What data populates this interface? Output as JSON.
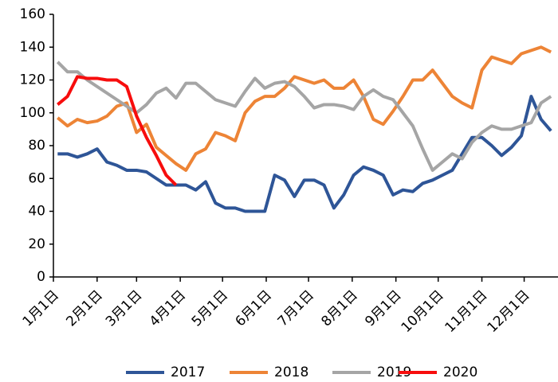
{
  "chart_data": {
    "type": "line",
    "x": [
      3,
      10,
      17,
      24,
      31,
      38,
      45,
      52,
      59,
      66,
      73,
      80,
      87,
      94,
      101,
      108,
      115,
      122,
      129,
      136,
      143,
      150,
      157,
      164,
      171,
      178,
      185,
      192,
      199,
      206,
      213,
      220,
      227,
      234,
      241,
      248,
      255,
      262,
      269,
      276,
      283,
      290,
      297,
      304,
      311,
      318,
      325,
      332,
      339,
      346,
      353
    ],
    "xlim": [
      0,
      358
    ],
    "xticks": [
      {
        "value": 0,
        "label": "1月1日"
      },
      {
        "value": 31,
        "label": "2月1日"
      },
      {
        "value": 59,
        "label": "3月1日"
      },
      {
        "value": 90,
        "label": "4月1日"
      },
      {
        "value": 120,
        "label": "5月1日"
      },
      {
        "value": 151,
        "label": "6月1日"
      },
      {
        "value": 181,
        "label": "7月1日"
      },
      {
        "value": 212,
        "label": "8月1日"
      },
      {
        "value": 243,
        "label": "9月1日"
      },
      {
        "value": 273,
        "label": "10月1日"
      },
      {
        "value": 304,
        "label": "11月1日"
      },
      {
        "value": 334,
        "label": "12月1日"
      }
    ],
    "ylim": [
      0,
      160
    ],
    "yticks": [
      0,
      20,
      40,
      60,
      80,
      100,
      120,
      140,
      160
    ],
    "grid": false,
    "legend": "bottom",
    "series": [
      {
        "name": "2017",
        "color": "#2e5597",
        "values": [
          75,
          75,
          73,
          75,
          78,
          70,
          68,
          65,
          65,
          64,
          60,
          56,
          56,
          56,
          53,
          58,
          45,
          42,
          42,
          40,
          40,
          40,
          62,
          59,
          49,
          59,
          59,
          56,
          42,
          50,
          62,
          67,
          65,
          62,
          50,
          53,
          52,
          57,
          59,
          62,
          65,
          75,
          85,
          85,
          80,
          74,
          79,
          86,
          110,
          96,
          89
        ]
      },
      {
        "name": "2018",
        "color": "#ed8436",
        "values": [
          97,
          92,
          96,
          94,
          95,
          98,
          104,
          106,
          88,
          93,
          79,
          74,
          69,
          65,
          75,
          78,
          88,
          86,
          83,
          100,
          107,
          110,
          110,
          115,
          122,
          120,
          118,
          120,
          115,
          115,
          120,
          110,
          96,
          93,
          101,
          110,
          120,
          120,
          126,
          118,
          110,
          106,
          103,
          126,
          134,
          132,
          130,
          136,
          138,
          140,
          137
        ]
      },
      {
        "name": "2019",
        "color": "#a5a5a5",
        "values": [
          131,
          125,
          125,
          120,
          116,
          112,
          108,
          104,
          100,
          105,
          112,
          115,
          109,
          118,
          118,
          113,
          108,
          106,
          104,
          113,
          121,
          115,
          118,
          119,
          116,
          110,
          103,
          105,
          105,
          104,
          102,
          110,
          114,
          110,
          108,
          100,
          92,
          78,
          65,
          70,
          75,
          72,
          82,
          88,
          92,
          90,
          90,
          92,
          94,
          106,
          110
        ]
      },
      {
        "name": "2020",
        "color": "#f70d0d",
        "values": [
          105,
          110,
          122,
          121,
          121,
          120,
          120,
          116,
          98,
          85,
          74,
          62,
          56,
          null,
          null,
          null,
          null,
          null,
          null,
          null,
          null,
          null,
          null,
          null,
          null,
          null,
          null,
          null,
          null,
          null,
          null,
          null,
          null,
          null,
          null,
          null,
          null,
          null,
          null,
          null,
          null,
          null,
          null,
          null,
          null,
          null,
          null,
          null,
          null,
          null,
          null
        ]
      }
    ]
  }
}
